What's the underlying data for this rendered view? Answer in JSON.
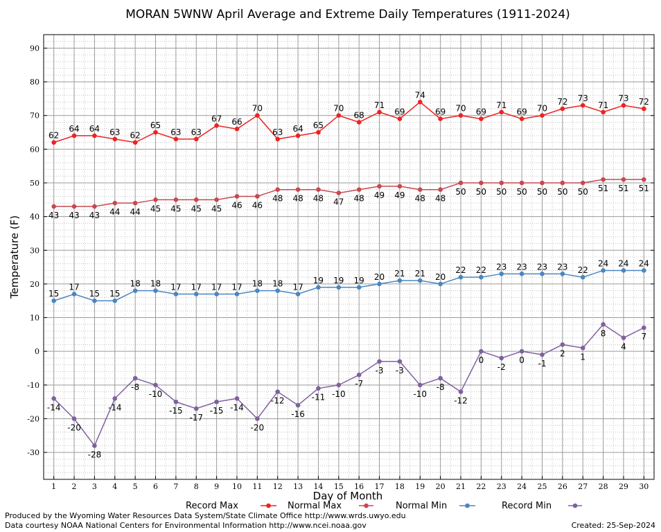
{
  "chart_data": {
    "type": "line",
    "title": "MORAN 5WNW April Average and Extreme Daily Temperatures (1911-2024)",
    "xlabel": "Day of Month",
    "ylabel": "Temperature (F)",
    "x": [
      1,
      2,
      3,
      4,
      5,
      6,
      7,
      8,
      9,
      10,
      11,
      12,
      13,
      14,
      15,
      16,
      17,
      18,
      19,
      20,
      21,
      22,
      23,
      24,
      25,
      26,
      27,
      28,
      29,
      30
    ],
    "xlim": [
      0.5,
      30.5
    ],
    "ylim": [
      -38,
      94
    ],
    "yticks": [
      -30,
      -20,
      -10,
      0,
      10,
      20,
      30,
      40,
      50,
      60,
      70,
      80,
      90
    ],
    "grid": true,
    "legend_position": "bottom",
    "series": [
      {
        "name": "Record Max",
        "color": "#ee2222",
        "values": [
          62,
          64,
          64,
          63,
          62,
          65,
          63,
          63,
          67,
          66,
          70,
          63,
          64,
          65,
          70,
          68,
          71,
          69,
          74,
          69,
          70,
          69,
          71,
          69,
          70,
          72,
          73,
          71,
          73,
          72
        ]
      },
      {
        "name": "Normal Max",
        "color": "#c84850",
        "values": [
          43,
          43,
          43,
          44,
          44,
          45,
          45,
          45,
          45,
          46,
          46,
          48,
          48,
          48,
          47,
          48,
          49,
          49,
          48,
          48,
          50,
          50,
          50,
          50,
          50,
          50,
          50,
          51,
          51,
          51
        ]
      },
      {
        "name": "Normal Min",
        "color": "#4a86c0",
        "values": [
          15,
          17,
          15,
          15,
          18,
          18,
          17,
          17,
          17,
          17,
          18,
          18,
          17,
          19,
          19,
          19,
          20,
          21,
          21,
          20,
          22,
          22,
          23,
          23,
          23,
          23,
          22,
          24,
          24,
          24
        ]
      },
      {
        "name": "Record Min",
        "color": "#8060a0",
        "values": [
          -14,
          -20,
          -28,
          -14,
          -8,
          -10,
          -15,
          -17,
          -15,
          -14,
          -20,
          -12,
          -16,
          -11,
          -10,
          -7,
          -3,
          -3,
          -10,
          -8,
          -12,
          0,
          -2,
          0,
          -1,
          2,
          1,
          8,
          4,
          7
        ]
      }
    ]
  },
  "footer": {
    "produced_by": "Produced by the Wyoming Water Resources Data System/State Climate Office http://www.wrds.uwyo.edu",
    "courtesy": "Data courtesy NOAA National Centers for Environmental Information http://www.ncei.noaa.gov",
    "created": "Created: 25-Sep-2024"
  }
}
